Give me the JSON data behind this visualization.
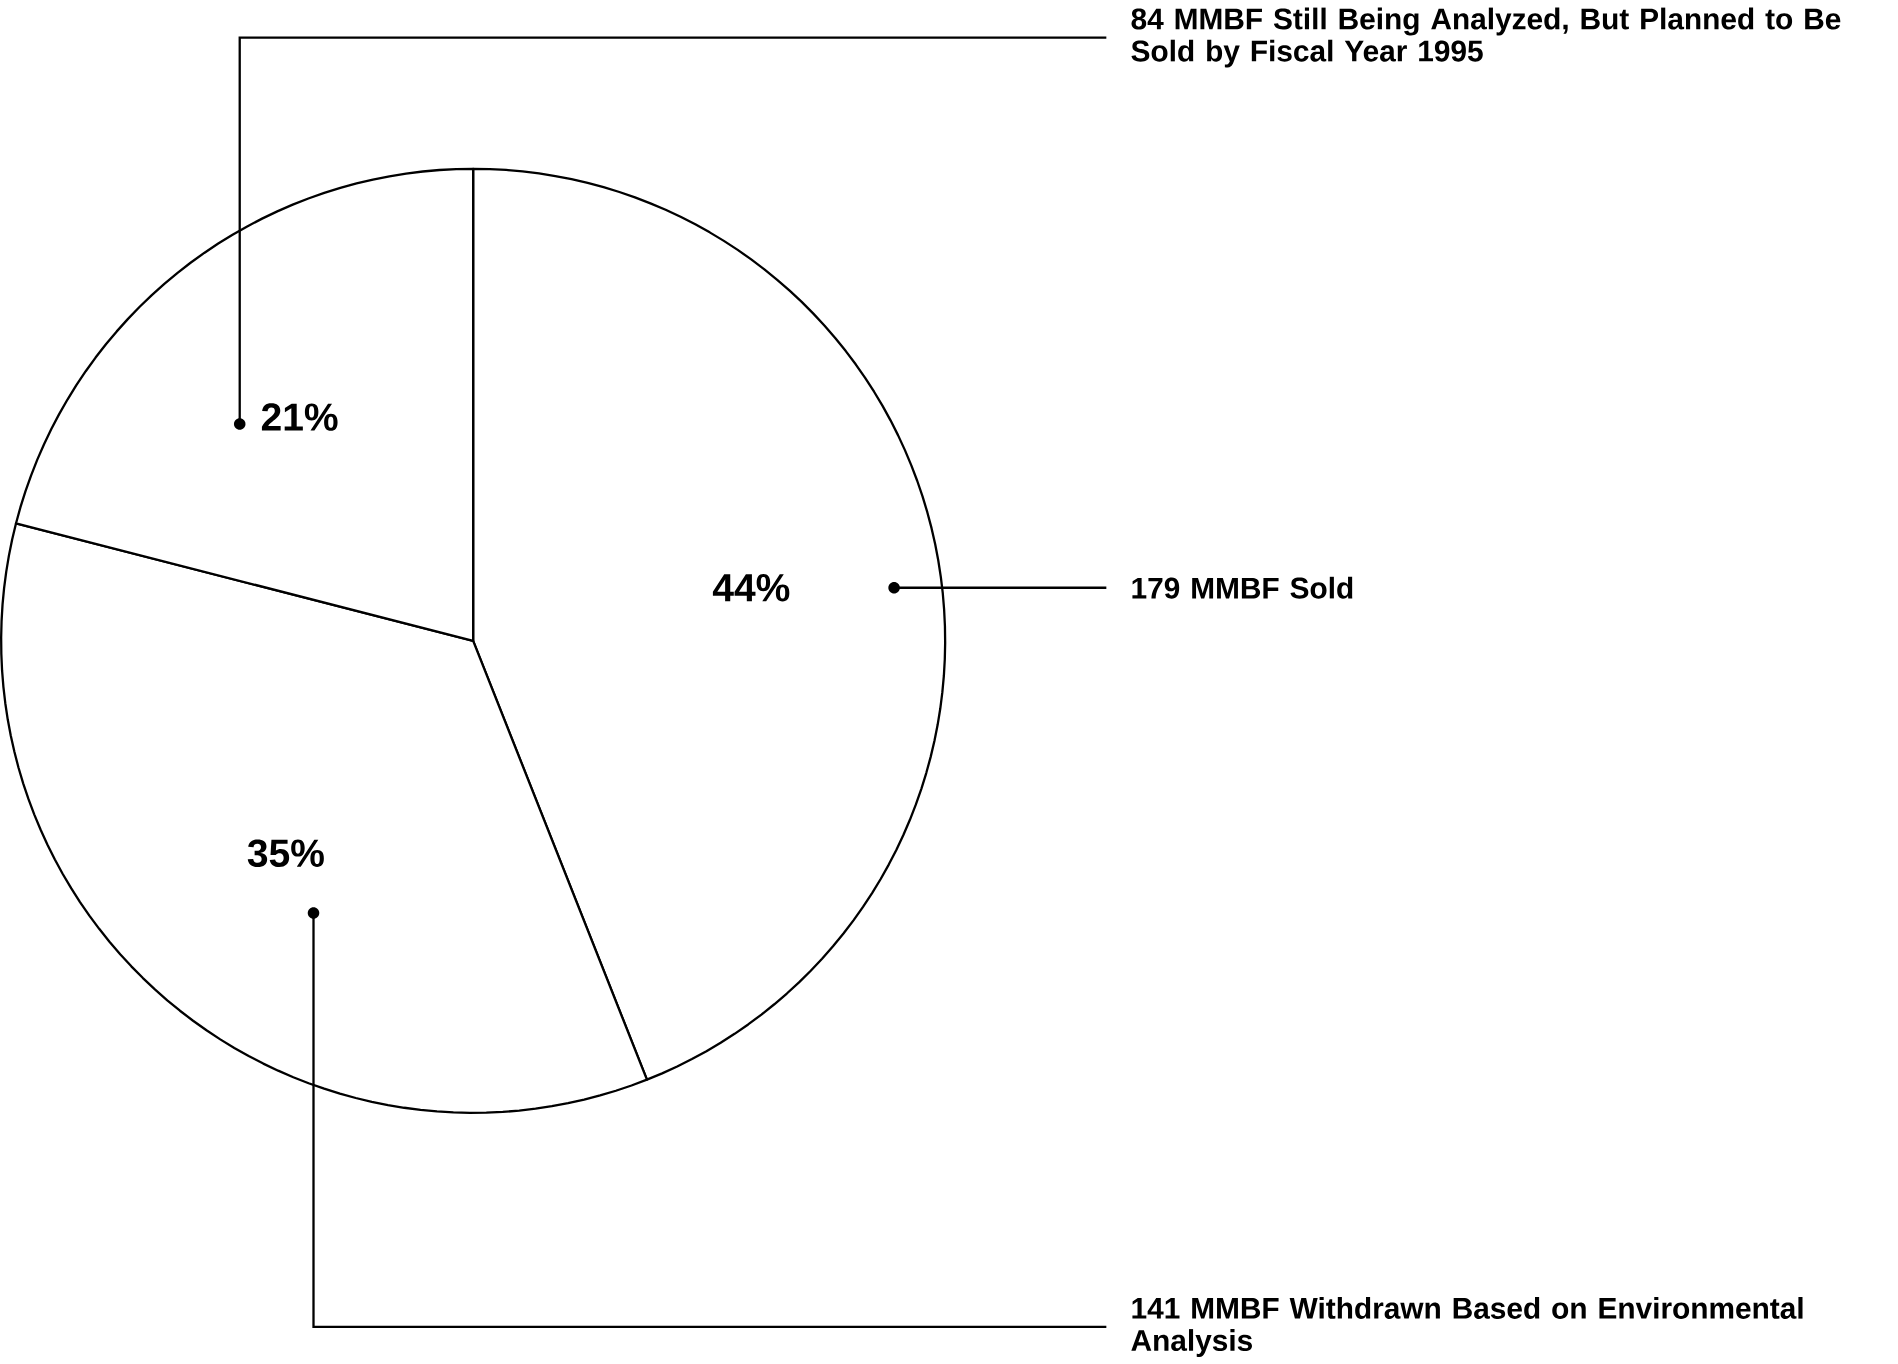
{
  "chart_data": {
    "type": "pie",
    "categories": [
      "179 MMBF Sold",
      "141 MMBF Withdrawn Based on Environmental Analysis",
      "84 MMBF Still Being Analyzed, But Planned to Be Sold by Fiscal Year 1995"
    ],
    "values": [
      44,
      35,
      21
    ],
    "value_labels": [
      "44%",
      "35%",
      "21%"
    ],
    "colors": [
      "#ffffff",
      "#ffffff",
      "#ffffff"
    ]
  }
}
